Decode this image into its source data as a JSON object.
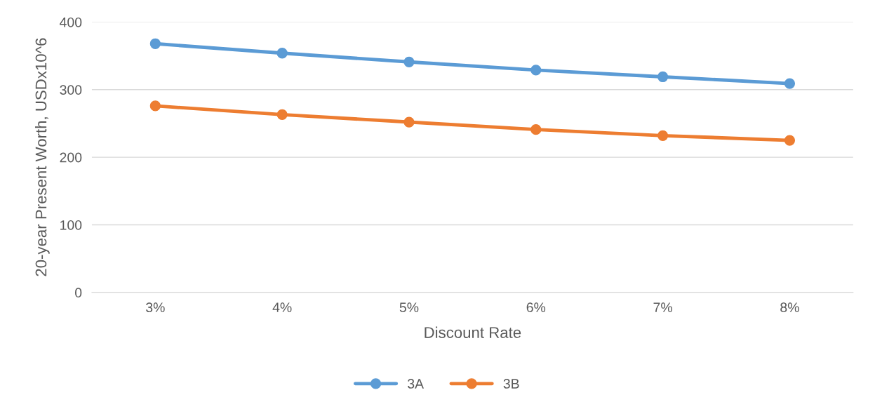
{
  "chart_data": {
    "type": "line",
    "xlabel": "Discount Rate",
    "ylabel": "20-year Present Worth, USDx10^6",
    "categories": [
      "3%",
      "4%",
      "5%",
      "6%",
      "7%",
      "8%"
    ],
    "series": [
      {
        "name": "3A",
        "color": "#5b9bd5",
        "values": [
          368,
          354,
          341,
          329,
          319,
          309
        ]
      },
      {
        "name": "3B",
        "color": "#ed7d31",
        "values": [
          276,
          263,
          252,
          241,
          232,
          225
        ]
      }
    ],
    "ylim": [
      0,
      400
    ],
    "yticks": [
      0,
      100,
      200,
      300,
      400
    ],
    "grid": "y",
    "legend": "bottom",
    "marker": "circle",
    "line_style": "solid"
  }
}
